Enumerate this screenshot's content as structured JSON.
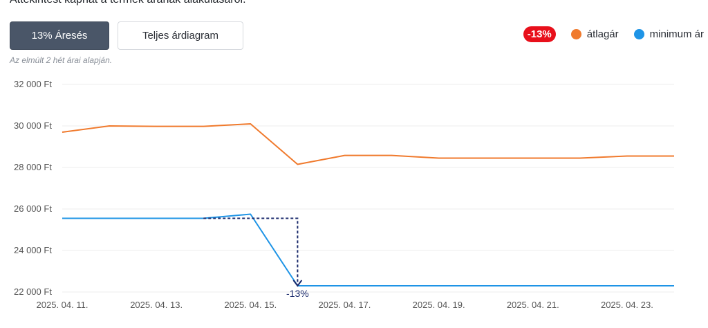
{
  "header": {
    "intro_text": "Áttekintést kaphat a termék árának alakulásáról.",
    "tab_active_label": "13% Áresés",
    "tab_inactive_label": "Teljes árdiagram",
    "note": "Az elmúlt 2 hét árai alapján."
  },
  "legend": {
    "badge": "-13%",
    "badge_color": "#e8101b",
    "items": [
      {
        "label": "átlagár",
        "color": "#f07a2d"
      },
      {
        "label": "minimum ár",
        "color": "#1e94e6"
      }
    ]
  },
  "colors": {
    "tab_active_bg": "#4a5668",
    "arrow": "#1a2a6c",
    "grid": "#eeeeee"
  },
  "chart_data": {
    "type": "line",
    "x": [
      "2025-04-11",
      "2025-04-12",
      "2025-04-13",
      "2025-04-14",
      "2025-04-15",
      "2025-04-16",
      "2025-04-17",
      "2025-04-18",
      "2025-04-19",
      "2025-04-20",
      "2025-04-21",
      "2025-04-22",
      "2025-04-23",
      "2025-04-24"
    ],
    "x_tick_labels": [
      "2025. 04. 11.",
      "2025. 04. 13.",
      "2025. 04. 15.",
      "2025. 04. 17.",
      "2025. 04. 19.",
      "2025. 04. 21.",
      "2025. 04. 23."
    ],
    "x_tick_dates": [
      "2025-04-11",
      "2025-04-13",
      "2025-04-15",
      "2025-04-17",
      "2025-04-19",
      "2025-04-21",
      "2025-04-23"
    ],
    "ylim": [
      22000,
      32000
    ],
    "y_ticks": [
      22000,
      24000,
      26000,
      28000,
      30000,
      32000
    ],
    "y_tick_labels": [
      "22 000 Ft",
      "24 000 Ft",
      "26 000 Ft",
      "28 000 Ft",
      "30 000 Ft",
      "32 000 Ft"
    ],
    "grid": true,
    "legend_position": "top-right",
    "series": [
      {
        "name": "átlagár",
        "color": "#f07a2d",
        "values": [
          29700,
          30000,
          29980,
          29980,
          30100,
          28150,
          28580,
          28580,
          28450,
          28450,
          28450,
          28450,
          28550,
          28550
        ]
      },
      {
        "name": "minimum ár",
        "color": "#1e94e6",
        "values": [
          25550,
          25550,
          25550,
          25550,
          25750,
          22300,
          22300,
          22300,
          22300,
          22300,
          22300,
          22300,
          22300,
          22300
        ]
      }
    ],
    "annotation": {
      "label": "-13%",
      "from_date": "2025-04-14",
      "to_date": "2025-04-16",
      "from_value": 25550,
      "to_value": 22300
    }
  }
}
